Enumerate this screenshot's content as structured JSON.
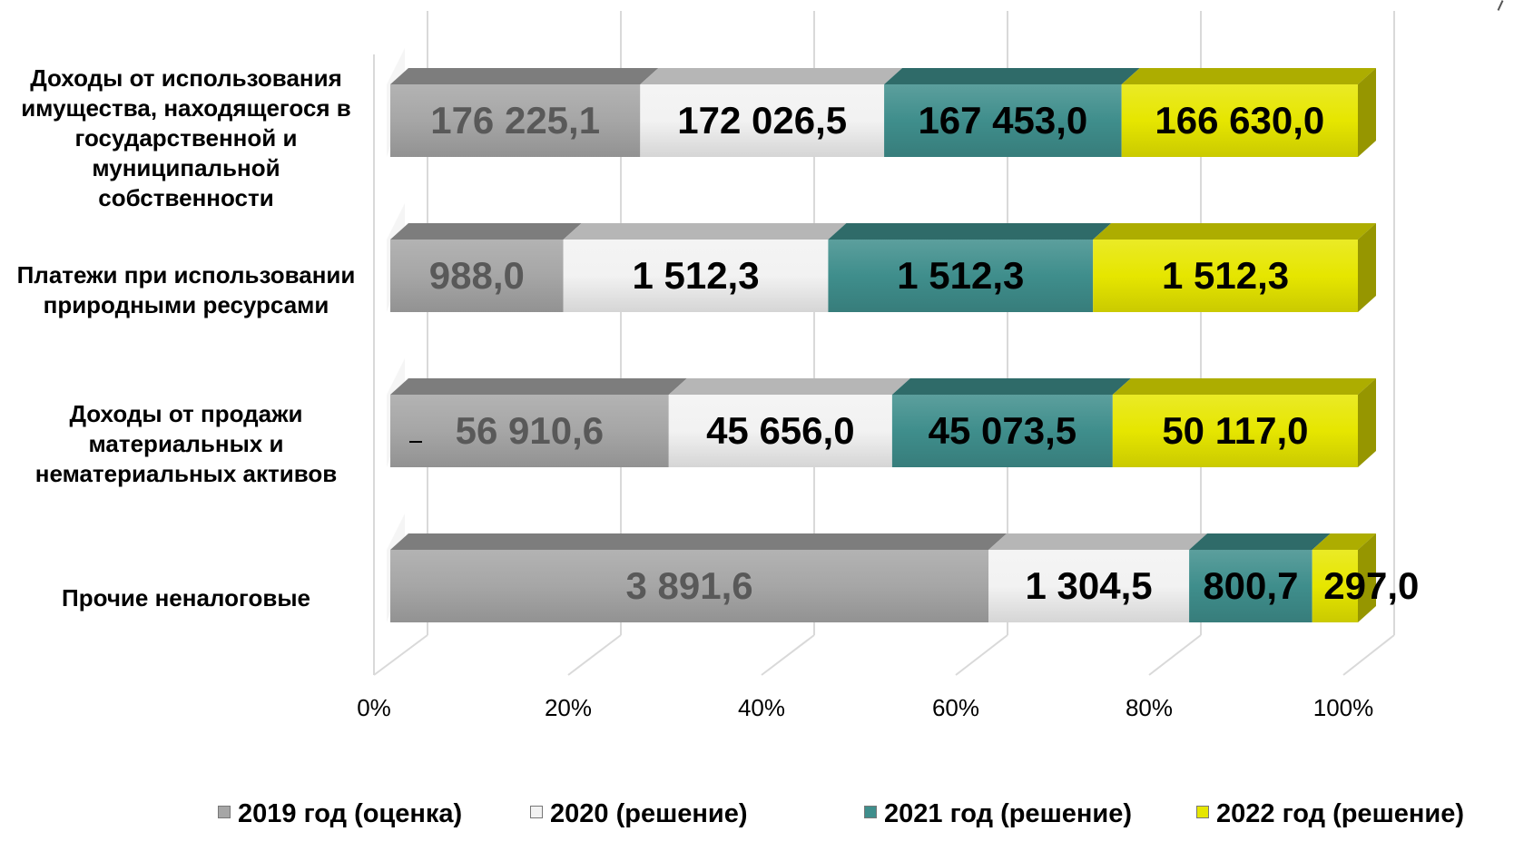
{
  "chart_data": {
    "type": "bar",
    "orientation": "horizontal",
    "stacked": "percent",
    "style": "3d",
    "categories": [
      "Доходы от использования имущества, находящегося в государственной и муниципальной собственности",
      "Платежи при использовании природными ресурсами",
      "Доходы от продажи материальных и нематериальных активов",
      "Прочие неналоговые"
    ],
    "series": [
      {
        "name": "2019 год (оценка)",
        "color": "#a6a6a6",
        "label_color": "#595959",
        "values": [
          176225.1,
          988.0,
          56910.6,
          3891.6
        ],
        "labels": [
          "176 225,1",
          "988,0",
          "56 910,6",
          "3 891,6"
        ]
      },
      {
        "name": "2020 (решение)",
        "color": "#f2f2f2",
        "label_color": "#000000",
        "values": [
          172026.5,
          1512.3,
          45656.0,
          1304.5
        ],
        "labels": [
          "172 026,5",
          "1 512,3",
          "45 656,0",
          "1 304,5"
        ]
      },
      {
        "name": "2021 год (решение)",
        "color": "#3f8e8c",
        "label_color": "#000000",
        "values": [
          167453.0,
          1512.3,
          45073.5,
          800.7
        ],
        "labels": [
          "167 453,0",
          "1 512,3",
          "45 073,5",
          "800,7"
        ]
      },
      {
        "name": "2022 год (решение)",
        "color": "#e6e600",
        "label_color": "#000000",
        "values": [
          166630.0,
          1512.3,
          50117.0,
          297.0
        ],
        "labels": [
          "166 630,0",
          "1 512,3",
          "50 117,0",
          "297,0"
        ]
      }
    ],
    "x_ticks": [
      "0%",
      "20%",
      "40%",
      "60%",
      "80%",
      "100%"
    ],
    "xlim": [
      0,
      100
    ],
    "grid": true,
    "legend_position": "bottom"
  }
}
